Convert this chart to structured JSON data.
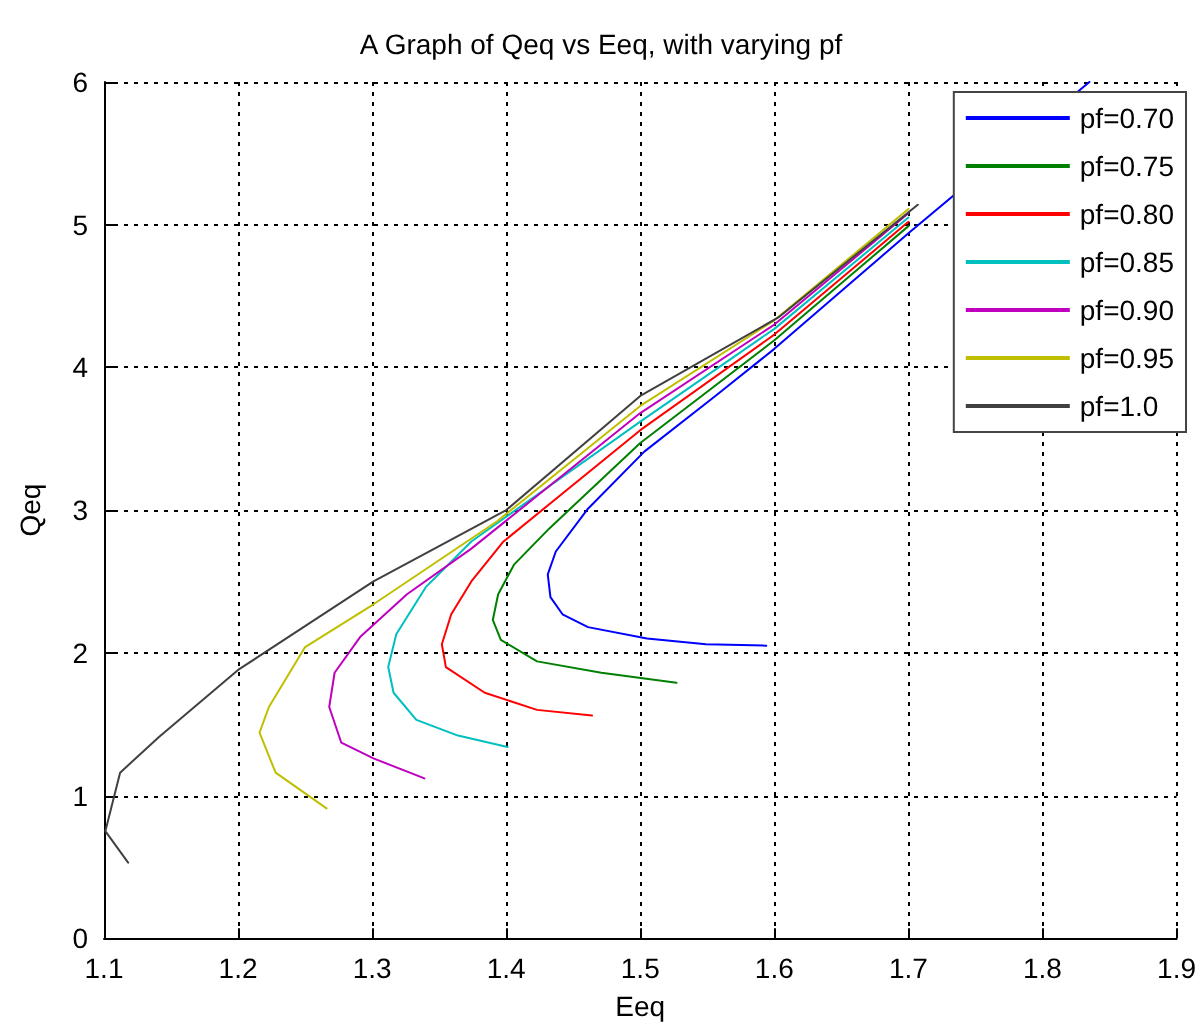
{
  "chart_data": {
    "type": "line",
    "title": "A Graph of Qeq vs Eeq, with varying pf",
    "xlabel": "Eeq",
    "ylabel": "Qeq",
    "xlim": [
      1.1,
      1.9
    ],
    "xticks": [
      1.1,
      1.2,
      1.3,
      1.4,
      1.5,
      1.6,
      1.7,
      1.8,
      1.9
    ],
    "ylim": [
      0,
      6
    ],
    "yticks": [
      0,
      1,
      2,
      3,
      4,
      5,
      6
    ],
    "grid": true,
    "legend": "top right",
    "marker": "none",
    "line_style": "solid",
    "series": [
      {
        "name": "pf=0.70",
        "color": "#0000ff",
        "x": [
          1.594,
          1.549,
          1.505,
          1.461,
          1.442,
          1.433,
          1.431,
          1.437,
          1.461,
          1.503,
          1.556,
          1.6,
          1.7,
          1.835
        ],
        "values": [
          2.05,
          2.06,
          2.1,
          2.18,
          2.27,
          2.39,
          2.55,
          2.71,
          3.01,
          3.41,
          3.8,
          4.13,
          4.94,
          6.0
        ]
      },
      {
        "name": "pf=0.75",
        "color": "#008000",
        "x": [
          1.527,
          1.471,
          1.423,
          1.396,
          1.39,
          1.394,
          1.406,
          1.432,
          1.5,
          1.6,
          1.7
        ],
        "values": [
          1.79,
          1.86,
          1.94,
          2.09,
          2.23,
          2.41,
          2.62,
          2.87,
          3.47,
          4.19,
          4.99
        ]
      },
      {
        "name": "pf=0.80",
        "color": "#ff0000",
        "x": [
          1.464,
          1.423,
          1.384,
          1.355,
          1.352,
          1.359,
          1.374,
          1.398,
          1.5,
          1.6,
          1.7
        ],
        "values": [
          1.56,
          1.6,
          1.72,
          1.9,
          2.06,
          2.27,
          2.5,
          2.78,
          3.56,
          4.23,
          5.02
        ]
      },
      {
        "name": "pf=0.85",
        "color": "#00bfbf",
        "x": [
          1.401,
          1.364,
          1.333,
          1.316,
          1.312,
          1.318,
          1.34,
          1.374,
          1.5,
          1.6,
          1.7
        ],
        "values": [
          1.34,
          1.42,
          1.53,
          1.72,
          1.9,
          2.13,
          2.46,
          2.78,
          3.62,
          4.27,
          5.05
        ]
      },
      {
        "name": "pf=0.90",
        "color": "#bf00bf",
        "x": [
          1.339,
          1.301,
          1.277,
          1.268,
          1.272,
          1.291,
          1.326,
          1.374,
          1.5,
          1.6,
          1.7
        ],
        "values": [
          1.12,
          1.26,
          1.37,
          1.62,
          1.86,
          2.11,
          2.41,
          2.73,
          3.68,
          4.3,
          5.08
        ]
      },
      {
        "name": "pf=0.95",
        "color": "#bfbf00",
        "x": [
          1.266,
          1.228,
          1.216,
          1.223,
          1.25,
          1.301,
          1.393,
          1.5,
          1.6,
          1.7
        ],
        "values": [
          0.91,
          1.16,
          1.44,
          1.62,
          2.04,
          2.34,
          2.92,
          3.73,
          4.33,
          5.11
        ]
      },
      {
        "name": "pf=1.0",
        "color": "#404040",
        "x": [
          1.118,
          1.101,
          1.112,
          1.141,
          1.2,
          1.301,
          1.4,
          1.5,
          1.603,
          1.707
        ],
        "values": [
          0.53,
          0.75,
          1.16,
          1.41,
          1.88,
          2.5,
          3.0,
          3.8,
          4.35,
          5.14
        ]
      }
    ]
  }
}
